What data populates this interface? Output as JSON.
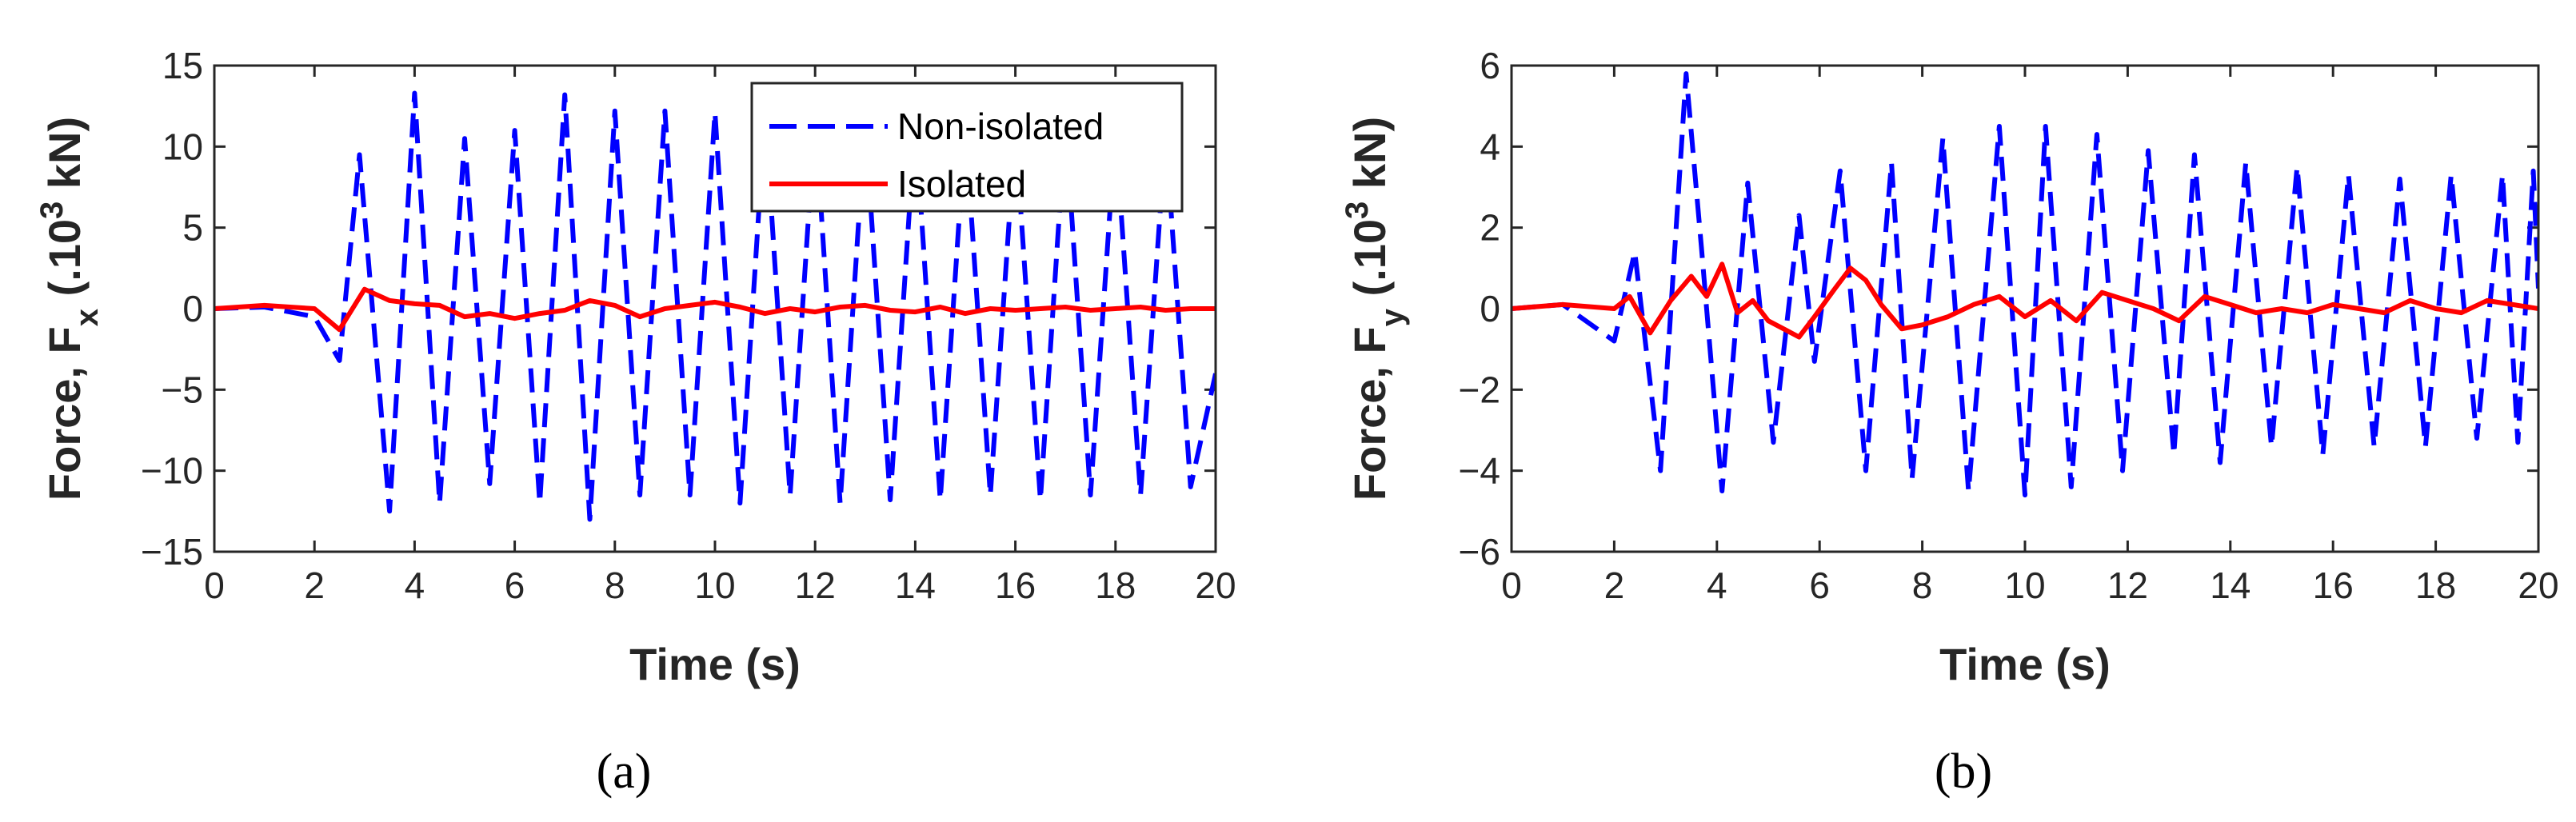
{
  "chart_data": [
    {
      "type": "line",
      "panel": "a",
      "caption": "(a)",
      "xlabel": "Time (s)",
      "ylabel_base": "Force, F",
      "ylabel_sub": "x",
      "ylabel_unit_pre": " (.10",
      "ylabel_sup": "3",
      "ylabel_unit_post": " kN)",
      "xlim": [
        0,
        20
      ],
      "ylim": [
        -15,
        15
      ],
      "xticks": [
        0,
        2,
        4,
        6,
        8,
        10,
        12,
        14,
        16,
        18,
        20
      ],
      "yticks": [
        -15,
        -10,
        -5,
        0,
        5,
        10,
        15
      ],
      "xtick_labels": [
        "0",
        "2",
        "4",
        "6",
        "8",
        "10",
        "12",
        "14",
        "16",
        "18",
        "20"
      ],
      "ytick_labels": [
        "−15",
        "−10",
        "−5",
        "0",
        "5",
        "10",
        "15"
      ],
      "legend": {
        "position": "top-right",
        "entries": [
          "Non-isolated",
          "Isolated"
        ]
      },
      "series": [
        {
          "name": "Non-isolated",
          "color": "#0000ff",
          "style": "dashed",
          "points": [
            [
              0,
              0
            ],
            [
              1,
              0.1
            ],
            [
              2,
              -0.5
            ],
            [
              2.5,
              -3.2
            ],
            [
              2.9,
              9.5
            ],
            [
              3.5,
              -12.5
            ],
            [
              4,
              13.3
            ],
            [
              4.5,
              -12
            ],
            [
              5,
              10.5
            ],
            [
              5.5,
              -10.8
            ],
            [
              6,
              11
            ],
            [
              6.5,
              -12
            ],
            [
              7,
              13.2
            ],
            [
              7.5,
              -13
            ],
            [
              8,
              12.2
            ],
            [
              8.5,
              -11.5
            ],
            [
              9,
              12.2
            ],
            [
              9.5,
              -11.5
            ],
            [
              10,
              12.1
            ],
            [
              10.5,
              -12
            ],
            [
              11,
              12
            ],
            [
              11.5,
              -11.5
            ],
            [
              12,
              11.8
            ],
            [
              12.5,
              -12
            ],
            [
              13,
              11.5
            ],
            [
              13.5,
              -11.8
            ],
            [
              14,
              11.5
            ],
            [
              14.5,
              -11.8
            ],
            [
              15,
              11.2
            ],
            [
              15.5,
              -11.5
            ],
            [
              16,
              11
            ],
            [
              16.5,
              -11.8
            ],
            [
              17,
              11.5
            ],
            [
              17.5,
              -11.5
            ],
            [
              18,
              11
            ],
            [
              18.5,
              -11.5
            ],
            [
              19,
              10.8
            ],
            [
              19.5,
              -11
            ],
            [
              20,
              -4
            ]
          ]
        },
        {
          "name": "Isolated",
          "color": "#ff0000",
          "style": "solid",
          "points": [
            [
              0,
              0
            ],
            [
              1,
              0.2
            ],
            [
              2,
              0
            ],
            [
              2.5,
              -1.3
            ],
            [
              3,
              1.2
            ],
            [
              3.5,
              0.5
            ],
            [
              4,
              0.3
            ],
            [
              4.5,
              0.2
            ],
            [
              5,
              -0.5
            ],
            [
              5.5,
              -0.3
            ],
            [
              6,
              -0.6
            ],
            [
              6.5,
              -0.3
            ],
            [
              7,
              -0.1
            ],
            [
              7.5,
              0.5
            ],
            [
              8,
              0.2
            ],
            [
              8.5,
              -0.5
            ],
            [
              9,
              0
            ],
            [
              9.5,
              0.2
            ],
            [
              10,
              0.4
            ],
            [
              10.5,
              0.1
            ],
            [
              11,
              -0.3
            ],
            [
              11.5,
              0
            ],
            [
              12,
              -0.2
            ],
            [
              12.5,
              0.1
            ],
            [
              13,
              0.2
            ],
            [
              13.5,
              -0.1
            ],
            [
              14,
              -0.2
            ],
            [
              14.5,
              0.1
            ],
            [
              15,
              -0.3
            ],
            [
              15.5,
              0
            ],
            [
              16,
              -0.1
            ],
            [
              16.5,
              0
            ],
            [
              17,
              0.1
            ],
            [
              17.5,
              -0.1
            ],
            [
              18,
              0
            ],
            [
              18.5,
              0.1
            ],
            [
              19,
              -0.1
            ],
            [
              19.5,
              0
            ],
            [
              20,
              0
            ]
          ]
        }
      ]
    },
    {
      "type": "line",
      "panel": "b",
      "caption": "(b)",
      "xlabel": "Time (s)",
      "ylabel_base": "Force, F",
      "ylabel_sub": "y",
      "ylabel_unit_pre": " (.10",
      "ylabel_sup": "3",
      "ylabel_unit_post": " kN)",
      "xlim": [
        0,
        20
      ],
      "ylim": [
        -6,
        6
      ],
      "xticks": [
        0,
        2,
        4,
        6,
        8,
        10,
        12,
        14,
        16,
        18,
        20
      ],
      "yticks": [
        -6,
        -4,
        -2,
        0,
        2,
        4,
        6
      ],
      "xtick_labels": [
        "0",
        "2",
        "4",
        "6",
        "8",
        "10",
        "12",
        "14",
        "16",
        "18",
        "20"
      ],
      "ytick_labels": [
        "−6",
        "−4",
        "−2",
        "0",
        "2",
        "4",
        "6"
      ],
      "series": [
        {
          "name": "Non-isolated",
          "color": "#0000ff",
          "style": "dashed",
          "points": [
            [
              0,
              0
            ],
            [
              1,
              0.1
            ],
            [
              2,
              -0.8
            ],
            [
              2.4,
              1.4
            ],
            [
              2.9,
              -4
            ],
            [
              3.4,
              5.8
            ],
            [
              3.7,
              1.5
            ],
            [
              4.1,
              -4.5
            ],
            [
              4.6,
              3.1
            ],
            [
              5.1,
              -3.3
            ],
            [
              5.6,
              2.3
            ],
            [
              5.9,
              -1.3
            ],
            [
              6.4,
              3.4
            ],
            [
              6.9,
              -4
            ],
            [
              7.4,
              3.6
            ],
            [
              7.8,
              -4.2
            ],
            [
              8.4,
              4.2
            ],
            [
              8.9,
              -4.5
            ],
            [
              9.5,
              4.5
            ],
            [
              10,
              -4.6
            ],
            [
              10.4,
              4.5
            ],
            [
              10.9,
              -4.4
            ],
            [
              11.4,
              4.3
            ],
            [
              11.9,
              -4
            ],
            [
              12.4,
              3.9
            ],
            [
              12.9,
              -3.6
            ],
            [
              13.3,
              3.8
            ],
            [
              13.8,
              -3.8
            ],
            [
              14.3,
              3.6
            ],
            [
              14.8,
              -3.4
            ],
            [
              15.3,
              3.5
            ],
            [
              15.8,
              -3.6
            ],
            [
              16.3,
              3.3
            ],
            [
              16.8,
              -3.4
            ],
            [
              17.3,
              3.2
            ],
            [
              17.8,
              -3.4
            ],
            [
              18.3,
              3.3
            ],
            [
              18.8,
              -3.2
            ],
            [
              19.3,
              3.3
            ],
            [
              19.6,
              -3.3
            ],
            [
              19.9,
              3.4
            ],
            [
              20,
              0.5
            ]
          ]
        },
        {
          "name": "Isolated",
          "color": "#ff0000",
          "style": "solid",
          "points": [
            [
              0,
              0
            ],
            [
              1,
              0.1
            ],
            [
              2,
              0
            ],
            [
              2.3,
              0.3
            ],
            [
              2.7,
              -0.6
            ],
            [
              3.1,
              0.2
            ],
            [
              3.5,
              0.8
            ],
            [
              3.8,
              0.3
            ],
            [
              4.1,
              1.1
            ],
            [
              4.4,
              -0.1
            ],
            [
              4.7,
              0.2
            ],
            [
              5,
              -0.3
            ],
            [
              5.3,
              -0.5
            ],
            [
              5.6,
              -0.7
            ],
            [
              5.9,
              -0.2
            ],
            [
              6.3,
              0.5
            ],
            [
              6.6,
              1
            ],
            [
              6.9,
              0.7
            ],
            [
              7.2,
              0.1
            ],
            [
              7.6,
              -0.5
            ],
            [
              8,
              -0.4
            ],
            [
              8.5,
              -0.2
            ],
            [
              9,
              0.1
            ],
            [
              9.5,
              0.3
            ],
            [
              10,
              -0.2
            ],
            [
              10.5,
              0.2
            ],
            [
              11,
              -0.3
            ],
            [
              11.5,
              0.4
            ],
            [
              12,
              0.2
            ],
            [
              12.5,
              0
            ],
            [
              13,
              -0.3
            ],
            [
              13.5,
              0.3
            ],
            [
              14,
              0.1
            ],
            [
              14.5,
              -0.1
            ],
            [
              15,
              0
            ],
            [
              15.5,
              -0.1
            ],
            [
              16,
              0.1
            ],
            [
              16.5,
              0
            ],
            [
              17,
              -0.1
            ],
            [
              17.5,
              0.2
            ],
            [
              18,
              0
            ],
            [
              18.5,
              -0.1
            ],
            [
              19,
              0.2
            ],
            [
              19.5,
              0.1
            ],
            [
              20,
              0
            ]
          ]
        }
      ]
    }
  ]
}
